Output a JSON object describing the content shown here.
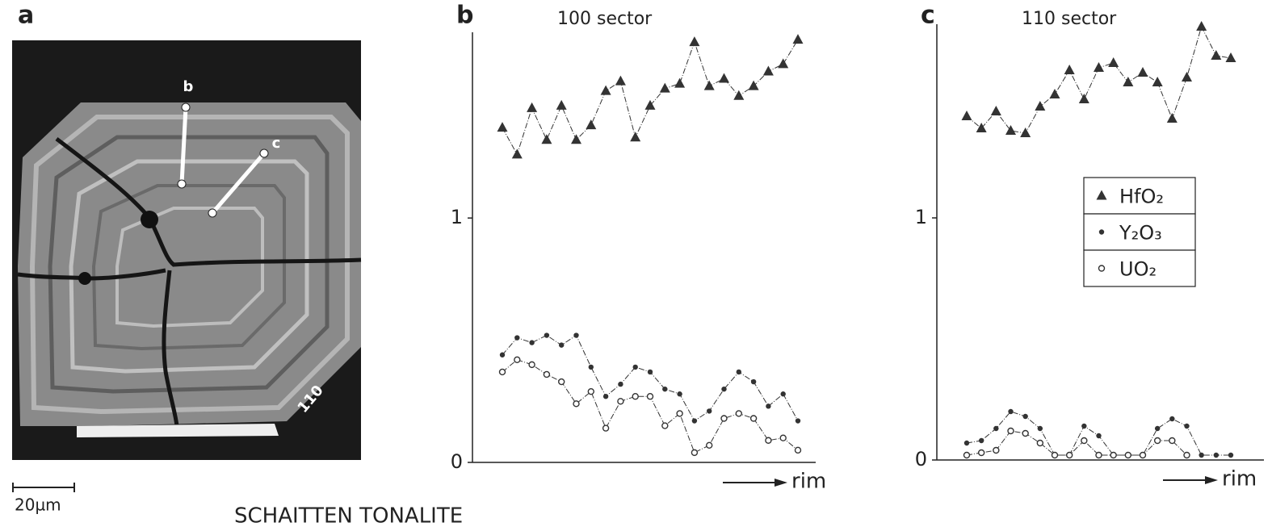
{
  "figure": {
    "panel": "a",
    "image_labels": [
      "b",
      "c",
      "110"
    ],
    "scale_bar": "20µm",
    "caption": "SCHAITTEN TONALITE"
  },
  "chart_data": [
    {
      "type": "line",
      "panel": "b",
      "title": "100 sector",
      "x_label": "rim",
      "legend": false,
      "categories": [
        null,
        null,
        null,
        null,
        null,
        null,
        null,
        null,
        null,
        null,
        null,
        null,
        null,
        null,
        null,
        null,
        null,
        null,
        null,
        null,
        null
      ],
      "ylim": [
        0,
        1.76
      ],
      "yticks": [
        0,
        1
      ],
      "grid": false,
      "series": [
        {
          "name": "HfO₂",
          "marker": "triangle",
          "color": "#333333",
          "values": [
            1.37,
            1.26,
            1.45,
            1.32,
            1.46,
            1.32,
            1.38,
            1.52,
            1.56,
            1.33,
            1.46,
            1.53,
            1.55,
            1.72,
            1.54,
            1.57,
            1.5,
            1.54,
            1.6,
            1.63,
            1.73
          ]
        },
        {
          "name": "Y₂O₃",
          "marker": "dot",
          "color": "#333333",
          "values": [
            0.44,
            0.51,
            0.49,
            0.52,
            0.48,
            0.52,
            0.39,
            0.27,
            0.32,
            0.39,
            0.37,
            0.3,
            0.28,
            0.17,
            0.21,
            0.3,
            0.37,
            0.33,
            0.23,
            0.28,
            0.17
          ]
        },
        {
          "name": "UO₂",
          "marker": "circle",
          "color": "#333333",
          "values": [
            0.37,
            0.42,
            0.4,
            0.36,
            0.33,
            0.24,
            0.29,
            0.14,
            0.25,
            0.27,
            0.27,
            0.15,
            0.2,
            0.04,
            0.07,
            0.18,
            0.2,
            0.18,
            0.09,
            0.1,
            0.05
          ]
        }
      ]
    },
    {
      "type": "line",
      "panel": "c",
      "title": "110 sector",
      "x_label": "rim",
      "legend": "center right",
      "categories": [
        null,
        null,
        null,
        null,
        null,
        null,
        null,
        null,
        null,
        null,
        null,
        null,
        null,
        null,
        null,
        null,
        null,
        null,
        null
      ],
      "ylim": [
        0,
        1.8
      ],
      "yticks": [
        0,
        1
      ],
      "grid": false,
      "series": [
        {
          "name": "HfO₂",
          "marker": "triangle",
          "color": "#333333",
          "values": [
            1.42,
            1.37,
            1.44,
            1.36,
            1.35,
            1.46,
            1.51,
            1.61,
            1.49,
            1.62,
            1.64,
            1.56,
            1.6,
            1.56,
            1.41,
            1.58,
            1.79,
            1.67,
            1.66
          ]
        },
        {
          "name": "Y₂O₃",
          "marker": "dot",
          "color": "#333333",
          "values": [
            0.07,
            0.08,
            0.13,
            0.2,
            0.18,
            0.13,
            0.02,
            0.02,
            0.14,
            0.1,
            0.02,
            0.02,
            0.02,
            0.13,
            0.17,
            0.14,
            0.02,
            0.02,
            0.02
          ]
        },
        {
          "name": "UO₂",
          "marker": "circle",
          "color": "#333333",
          "values": [
            0.02,
            0.03,
            0.04,
            0.12,
            0.11,
            0.07,
            0.02,
            0.02,
            0.08,
            0.02,
            0.02,
            0.02,
            0.02,
            0.08,
            0.08,
            0.02,
            null,
            null,
            null
          ]
        }
      ]
    }
  ]
}
